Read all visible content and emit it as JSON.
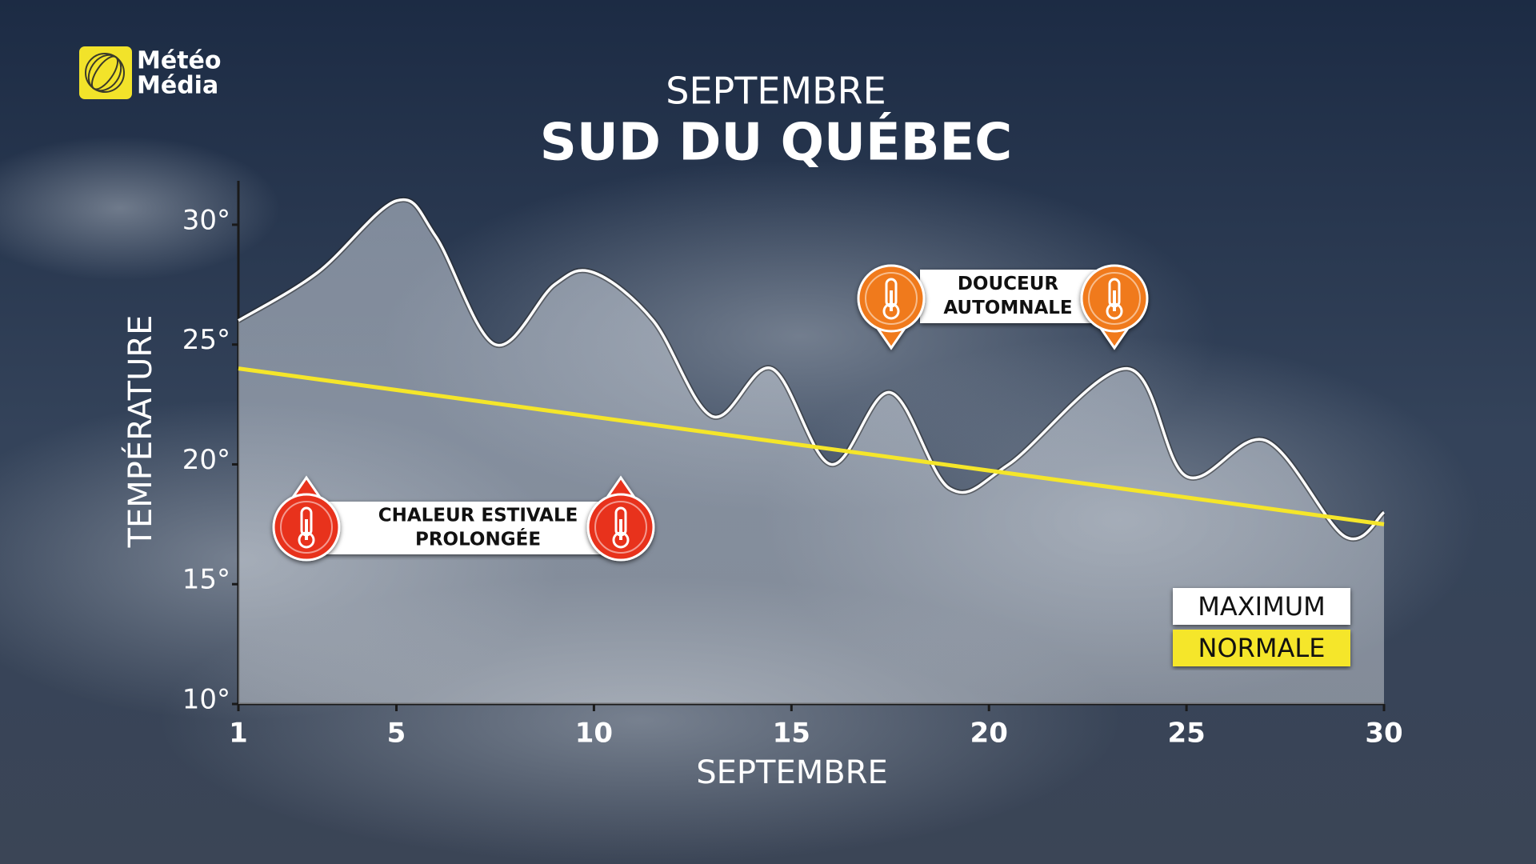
{
  "logo": {
    "lines": [
      "Météo",
      "Média"
    ]
  },
  "chart_data": {
    "type": "line",
    "title": "SEPTEMBRE",
    "subtitle": "SUD DU QUÉBEC",
    "y_label": "TEMPÉRATURE",
    "x_label": "SEPTEMBRE",
    "xlim": [
      1,
      30
    ],
    "xticks": [
      1,
      5,
      10,
      15,
      20,
      25,
      30
    ],
    "ylim": [
      10,
      32
    ],
    "yticks": [
      {
        "value": 10,
        "label": "10°"
      },
      {
        "value": 15,
        "label": "15°"
      },
      {
        "value": 20,
        "label": "20°"
      },
      {
        "value": 25,
        "label": "25°"
      },
      {
        "value": 30,
        "label": "30°"
      }
    ],
    "series": [
      {
        "name": "MAXIMUM",
        "color": "#ffffff",
        "x": [
          1,
          3,
          5,
          6,
          7.5,
          9,
          10,
          11.5,
          13,
          14.5,
          16,
          17.5,
          19,
          20.5,
          23.5,
          25,
          27,
          29,
          30
        ],
        "values": [
          26,
          28,
          31,
          29.5,
          25,
          27.5,
          28,
          26,
          22,
          24,
          20,
          23,
          19,
          20,
          24,
          19.5,
          21,
          17,
          18
        ]
      },
      {
        "name": "NORMALE",
        "color": "#f5e62a",
        "x": [
          1,
          30
        ],
        "values": [
          24,
          17.5
        ]
      }
    ],
    "annotations": [
      [
        "CHALEUR ESTIVALE",
        "PROLONGÉE"
      ],
      [
        "DOUCEUR",
        "AUTOMNALE"
      ]
    ]
  }
}
